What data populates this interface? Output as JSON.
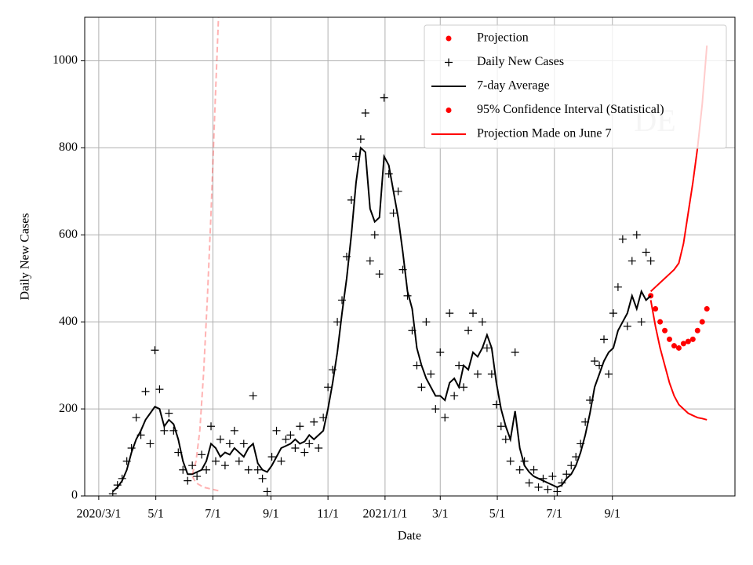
{
  "chart_data": {
    "type": "line",
    "xlabel": "Date",
    "ylabel": "Daily New Cases",
    "annotation": "DE",
    "grid": true,
    "legend": "upper right",
    "xlim": [
      -15,
      680
    ],
    "ylim": [
      0,
      1100
    ],
    "xticks": [
      {
        "value": 0,
        "label": "2020/3/1"
      },
      {
        "value": 61,
        "label": "5/1"
      },
      {
        "value": 122,
        "label": "7/1"
      },
      {
        "value": 184,
        "label": "9/1"
      },
      {
        "value": 245,
        "label": "11/1"
      },
      {
        "value": 306,
        "label": "2021/1/1"
      },
      {
        "value": 365,
        "label": "3/1"
      },
      {
        "value": 426,
        "label": "5/1"
      },
      {
        "value": 487,
        "label": "7/1"
      },
      {
        "value": 549,
        "label": "9/1"
      }
    ],
    "yticks": [
      0,
      200,
      400,
      600,
      800,
      1000
    ],
    "x": [
      15,
      20,
      25,
      30,
      35,
      40,
      45,
      50,
      55,
      60,
      65,
      70,
      75,
      80,
      85,
      90,
      95,
      100,
      105,
      110,
      115,
      120,
      125,
      130,
      135,
      140,
      145,
      150,
      155,
      160,
      165,
      170,
      175,
      180,
      185,
      190,
      195,
      200,
      205,
      210,
      215,
      220,
      225,
      230,
      235,
      240,
      245,
      250,
      255,
      260,
      265,
      270,
      275,
      280,
      285,
      290,
      295,
      300,
      305,
      310,
      315,
      320,
      325,
      330,
      335,
      340,
      345,
      350,
      355,
      360,
      365,
      370,
      375,
      380,
      385,
      390,
      395,
      400,
      405,
      410,
      415,
      420,
      425,
      430,
      435,
      440,
      445,
      450,
      455,
      460,
      465,
      470,
      475,
      480,
      485,
      490,
      495,
      500,
      505,
      510,
      515,
      520,
      525,
      530,
      535,
      540,
      545,
      550,
      555,
      560,
      565,
      570,
      575,
      580,
      585,
      590
    ],
    "series": [
      {
        "name": "Projection",
        "color": "#ff0000",
        "marker": "dot",
        "x": [
          590,
          595,
          600,
          605,
          610,
          615,
          620,
          625,
          630,
          635,
          640,
          645,
          650
        ],
        "values": [
          460,
          430,
          400,
          380,
          360,
          345,
          340,
          350,
          355,
          360,
          380,
          400,
          430
        ]
      },
      {
        "name": "Daily New Cases",
        "color": "#000000",
        "marker": "plus",
        "values": [
          5,
          25,
          40,
          80,
          110,
          180,
          140,
          240,
          120,
          335,
          245,
          150,
          190,
          150,
          100,
          60,
          35,
          70,
          45,
          95,
          60,
          160,
          80,
          130,
          70,
          120,
          150,
          80,
          120,
          60,
          230,
          60,
          40,
          10,
          90,
          150,
          80,
          130,
          140,
          110,
          160,
          100,
          120,
          170,
          110,
          180,
          250,
          290,
          400,
          450,
          550,
          680,
          780,
          820,
          880,
          540,
          600,
          510,
          915,
          740,
          650,
          700,
          520,
          460,
          380,
          300,
          250,
          400,
          280,
          200,
          330,
          180,
          420,
          230,
          300,
          250,
          380,
          420,
          280,
          400,
          340,
          280,
          210,
          160,
          130,
          80,
          330,
          60,
          80,
          30,
          60,
          20,
          40,
          15,
          45,
          10,
          30,
          50,
          70,
          90,
          120,
          170,
          220,
          310,
          300,
          360,
          280,
          420,
          480,
          590,
          390,
          540,
          600,
          400,
          560,
          540
        ]
      },
      {
        "name": "7-day Average",
        "color": "#000000",
        "marker": "line",
        "values": [
          10,
          20,
          35,
          60,
          100,
          130,
          150,
          175,
          190,
          205,
          200,
          160,
          175,
          165,
          130,
          80,
          50,
          50,
          55,
          60,
          80,
          120,
          110,
          90,
          100,
          95,
          110,
          100,
          90,
          110,
          120,
          75,
          60,
          55,
          70,
          90,
          110,
          115,
          120,
          130,
          120,
          125,
          140,
          130,
          140,
          150,
          200,
          260,
          330,
          420,
          500,
          600,
          720,
          800,
          790,
          660,
          630,
          640,
          780,
          760,
          700,
          640,
          560,
          470,
          430,
          340,
          300,
          270,
          250,
          230,
          230,
          220,
          260,
          270,
          250,
          300,
          290,
          330,
          320,
          340,
          370,
          340,
          260,
          200,
          160,
          130,
          195,
          110,
          70,
          55,
          45,
          40,
          35,
          30,
          25,
          20,
          25,
          40,
          50,
          70,
          100,
          140,
          190,
          250,
          280,
          310,
          330,
          340,
          380,
          400,
          420,
          460,
          430,
          470,
          450,
          460
        ]
      },
      {
        "name": "95% Confidence Interval (Statistical)",
        "color": "#ff0000",
        "marker": "dot",
        "style": "band",
        "x": [
          590,
          595,
          600,
          605,
          610,
          615,
          620,
          625,
          630,
          635,
          640,
          645,
          650
        ],
        "values": [
          450,
          390,
          340,
          300,
          260,
          230,
          210,
          200,
          190,
          185,
          180,
          178,
          175
        ],
        "upper": [
          470,
          480,
          490,
          500,
          510,
          520,
          535,
          580,
          650,
          720,
          800,
          900,
          1035
        ]
      },
      {
        "name": "Projection Made on June 7",
        "color": "#ff0000",
        "marker": "line",
        "style": "faded-band",
        "x": [
          100,
          104,
          108,
          112,
          116,
          120,
          124,
          128
        ],
        "values": [
          45,
          30,
          25,
          20,
          18,
          16,
          14,
          12
        ],
        "upper": [
          50,
          80,
          150,
          280,
          450,
          650,
          880,
          1100
        ]
      }
    ]
  }
}
